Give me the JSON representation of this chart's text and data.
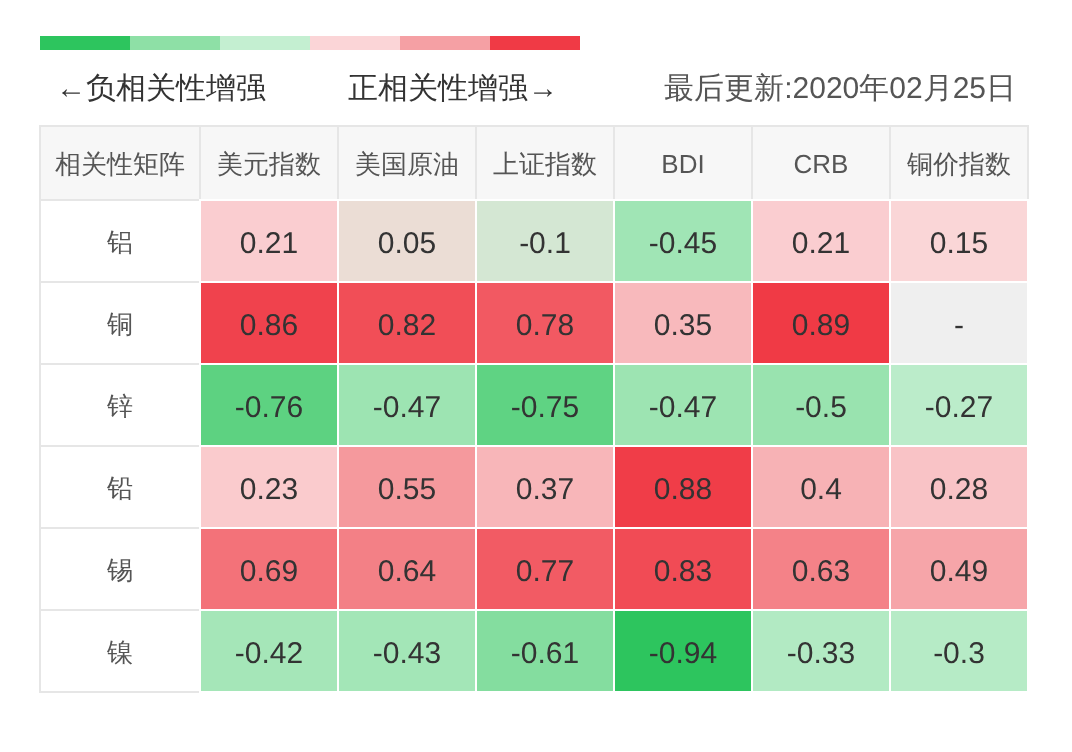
{
  "chart_data": {
    "type": "heatmap",
    "categories": [
      "美元指数",
      "美国原油",
      "上证指数",
      "BDI",
      "CRB",
      "铜价指数"
    ],
    "y_categories": [
      "铝",
      "铜",
      "锌",
      "铅",
      "锡",
      "镍"
    ],
    "cells": [
      [
        0.21,
        0.05,
        -0.1,
        -0.45,
        0.21,
        0.15
      ],
      [
        0.86,
        0.82,
        0.78,
        0.35,
        0.89,
        null
      ],
      [
        -0.76,
        -0.47,
        -0.75,
        -0.47,
        -0.5,
        -0.27
      ],
      [
        0.23,
        0.55,
        0.37,
        0.88,
        0.4,
        0.28
      ],
      [
        0.69,
        0.64,
        0.77,
        0.83,
        0.63,
        0.49
      ],
      [
        -0.42,
        -0.43,
        -0.61,
        -0.94,
        -0.33,
        -0.3
      ]
    ],
    "cell_labels": [
      [
        "0.21",
        "0.05",
        "-0.1",
        "-0.45",
        "0.21",
        "0.15"
      ],
      [
        "0.86",
        "0.82",
        "0.78",
        "0.35",
        "0.89",
        "-"
      ],
      [
        "-0.76",
        "-0.47",
        "-0.75",
        "-0.47",
        "-0.5",
        "-0.27"
      ],
      [
        "0.23",
        "0.55",
        "0.37",
        "0.88",
        "0.4",
        "0.28"
      ],
      [
        "0.69",
        "0.64",
        "0.77",
        "0.83",
        "0.63",
        "0.49"
      ],
      [
        "-0.42",
        "-0.43",
        "-0.61",
        "-0.94",
        "-0.33",
        "-0.3"
      ]
    ],
    "colors": [
      "#2dc55e",
      "#8ee0a6",
      "#c4efd1",
      "#fbd5d7",
      "#f5a0a4",
      "#f03a45"
    ],
    "legend_title": "相关性矩阵",
    "annotations": [
      "←负相关性增强",
      "正相关性增强→",
      "最后更新:2020年02月25日"
    ]
  }
}
